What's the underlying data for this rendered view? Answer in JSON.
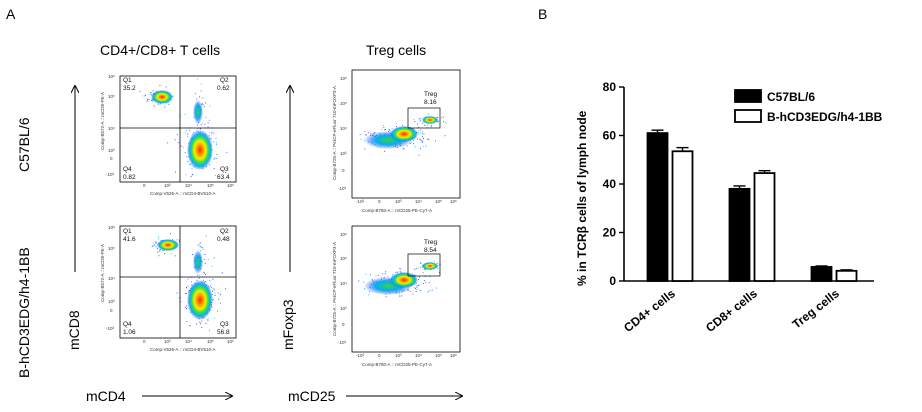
{
  "panel_a": {
    "letter": "A",
    "heading_tcells": "CD4+/CD8+ T cells",
    "heading_treg": "Treg cells",
    "row_labels": [
      "C57BL/6",
      "B-hCD3EDG/h4-1BB"
    ],
    "y_axis_tcells": "mCD8",
    "y_axis_treg": "mFoxp3",
    "x_axis_tcells": "mCD4",
    "x_axis_treg": "mCD25",
    "plot_labels": {
      "tcells_x": "Comp-V525-A :: mCD4-BV510-A",
      "tcells_y": "Comp-B572-A :: mCD8-PE-A",
      "treg_x": "Comp-B780-A :: mCD25-PE-Cy7-A",
      "treg_y": "Comp-B725-A :: PerCP-eFluor 710-mFOXP3-A"
    },
    "tick_labels": [
      "-10³",
      "0",
      "10³",
      "10⁴",
      "10⁵",
      "10⁶"
    ],
    "tcell_plots": [
      {
        "q1": "Q1",
        "q1v": "35.2",
        "q2": "Q2",
        "q2v": "0.62",
        "q3": "Q3",
        "q3v": "63.4",
        "q4": "Q4",
        "q4v": "0.82"
      },
      {
        "q1": "Q1",
        "q1v": "41.6",
        "q2": "Q2",
        "q2v": "0.48",
        "q3": "Q3",
        "q3v": "56.8",
        "q4": "Q4",
        "q4v": "1.06"
      }
    ],
    "treg_plots": [
      {
        "gate": "Treg",
        "value": "8.16"
      },
      {
        "gate": "Treg",
        "value": "8.54"
      }
    ]
  },
  "chart_data": {
    "panel_letter": "B",
    "type": "bar",
    "categories": [
      "CD4+ cells",
      "CD8+ cells",
      "Treg cells"
    ],
    "series": [
      {
        "name": "C57BL/6",
        "values": [
          61,
          38,
          5.8
        ],
        "errors": [
          1.2,
          1.2,
          0.4
        ],
        "color": "#000000"
      },
      {
        "name": "B-hCD3EDG/h4-1BB",
        "values": [
          53.5,
          44.5,
          4.2
        ],
        "errors": [
          1.5,
          1.0,
          0.4
        ],
        "color": "#ffffff"
      }
    ],
    "ylabel": "% in TCRβ cells of lymph node",
    "ylim": [
      0,
      80
    ],
    "yticks": [
      "0",
      "20",
      "40",
      "60",
      "80"
    ],
    "legend_placement": "top-right",
    "grid": false
  }
}
